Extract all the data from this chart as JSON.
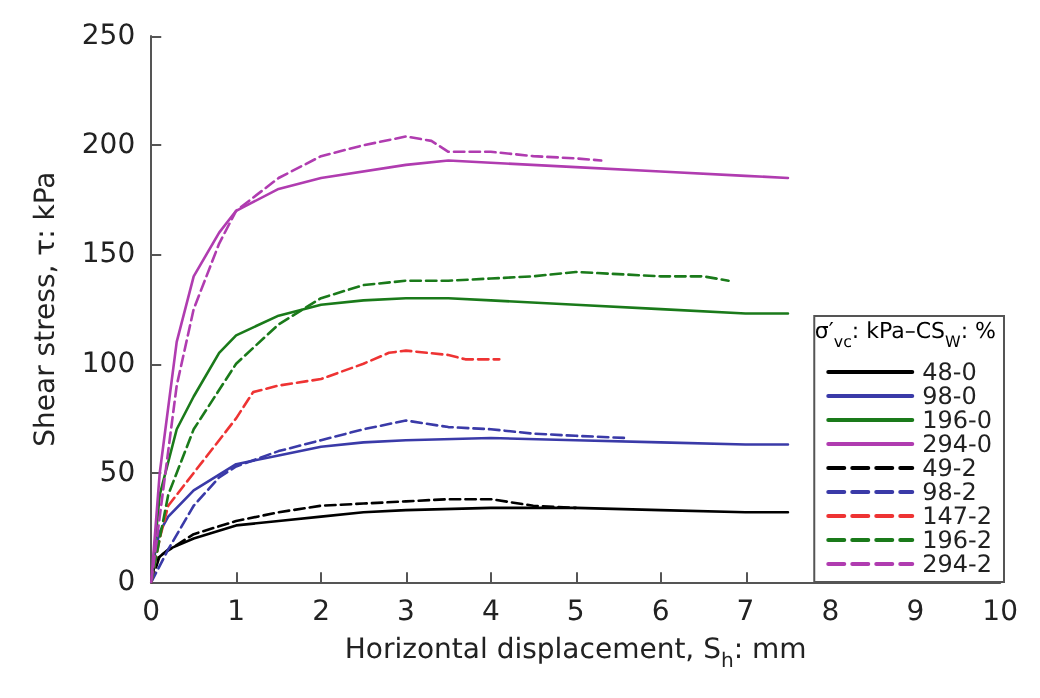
{
  "chart_data": {
    "type": "line",
    "xlabel": "Horizontal displacement, S$_{h}$: mm",
    "ylabel": "Shear stress, τ: kPa",
    "legend_title": "σ′$_{vc}$: kPa–CS$_{W}$: %",
    "legend": "bottom right",
    "xlim": [
      0,
      10
    ],
    "xticks": [
      0,
      1,
      2,
      3,
      4,
      5,
      6,
      7,
      8,
      9,
      10
    ],
    "ylim": [
      0,
      250
    ],
    "yticks": [
      0,
      50,
      100,
      150,
      200,
      250
    ],
    "series": [
      {
        "name": "48-0",
        "color": "#000000",
        "line_style": "solid",
        "x": [
          0,
          0.05,
          0.2,
          0.5,
          1,
          1.5,
          2,
          2.5,
          3,
          4,
          5,
          6,
          7,
          7.5
        ],
        "values": [
          0,
          10,
          15,
          20,
          26,
          28,
          30,
          32,
          33,
          34,
          34,
          33,
          32,
          32
        ]
      },
      {
        "name": "98-0",
        "color": "#3a3aa8",
        "line_style": "solid",
        "x": [
          0,
          0.05,
          0.1,
          0.2,
          0.5,
          1,
          1.5,
          2,
          2.5,
          3,
          4,
          5,
          6,
          7,
          7.5
        ],
        "values": [
          0,
          15,
          23,
          30,
          42,
          54,
          58,
          62,
          64,
          65,
          66,
          65,
          64,
          63,
          63
        ]
      },
      {
        "name": "196-0",
        "color": "#1a7a1a",
        "line_style": "solid",
        "x": [
          0,
          0.1,
          0.3,
          0.5,
          0.8,
          1,
          1.5,
          2,
          2.5,
          3,
          3.5,
          4,
          5,
          6,
          7,
          7.5
        ],
        "values": [
          0,
          40,
          70,
          85,
          105,
          113,
          122,
          127,
          129,
          130,
          130,
          129,
          127,
          125,
          123,
          123
        ]
      },
      {
        "name": "294-0",
        "color": "#b03cb0",
        "line_style": "solid",
        "x": [
          0,
          0.1,
          0.3,
          0.5,
          0.8,
          1,
          1.5,
          2,
          3,
          3.5,
          4,
          5,
          6,
          7,
          7.5
        ],
        "values": [
          0,
          50,
          110,
          140,
          160,
          170,
          180,
          185,
          191,
          193,
          192,
          190,
          188,
          186,
          185
        ]
      },
      {
        "name": "49-2",
        "color": "#000000",
        "line_style": "dashed",
        "x": [
          0,
          0.1,
          0.5,
          1,
          1.5,
          2,
          2.5,
          3,
          3.5,
          4,
          4.5,
          5
        ],
        "values": [
          0,
          12,
          22,
          28,
          32,
          35,
          36,
          37,
          38,
          38,
          35,
          34
        ]
      },
      {
        "name": "98-2",
        "color": "#3a3aa8",
        "line_style": "dashed",
        "x": [
          0,
          0.2,
          0.5,
          0.8,
          1,
          1.5,
          2,
          2.5,
          3,
          3.5,
          4,
          4.5,
          5,
          5.6
        ],
        "values": [
          0,
          15,
          35,
          48,
          53,
          60,
          65,
          70,
          74,
          71,
          70,
          68,
          67,
          66
        ]
      },
      {
        "name": "147-2",
        "color": "#ee3333",
        "line_style": "dashed",
        "x": [
          0,
          0.1,
          0.2,
          0.5,
          0.8,
          1,
          1.2,
          1.5,
          2,
          2.5,
          2.8,
          3,
          3.5,
          3.7,
          4.1
        ],
        "values": [
          0,
          20,
          35,
          50,
          65,
          75,
          87,
          90,
          93,
          100,
          105,
          106,
          104,
          102,
          102
        ]
      },
      {
        "name": "196-2",
        "color": "#1a7a1a",
        "line_style": "dashed",
        "x": [
          0,
          0.2,
          0.5,
          1,
          1.5,
          2,
          2.5,
          3,
          3.5,
          4,
          4.5,
          5,
          5.5,
          6,
          6.5,
          6.8
        ],
        "values": [
          0,
          40,
          70,
          100,
          118,
          130,
          136,
          138,
          138,
          139,
          140,
          142,
          141,
          140,
          140,
          138
        ]
      },
      {
        "name": "294-2",
        "color": "#b03cb0",
        "line_style": "dashed",
        "x": [
          0,
          0.1,
          0.3,
          0.5,
          0.8,
          1,
          1.5,
          2,
          2.5,
          3,
          3.3,
          3.5,
          4,
          4.5,
          5,
          5.3
        ],
        "values": [
          0,
          30,
          90,
          125,
          155,
          170,
          185,
          195,
          200,
          204,
          202,
          197,
          197,
          195,
          194,
          193
        ]
      }
    ]
  }
}
